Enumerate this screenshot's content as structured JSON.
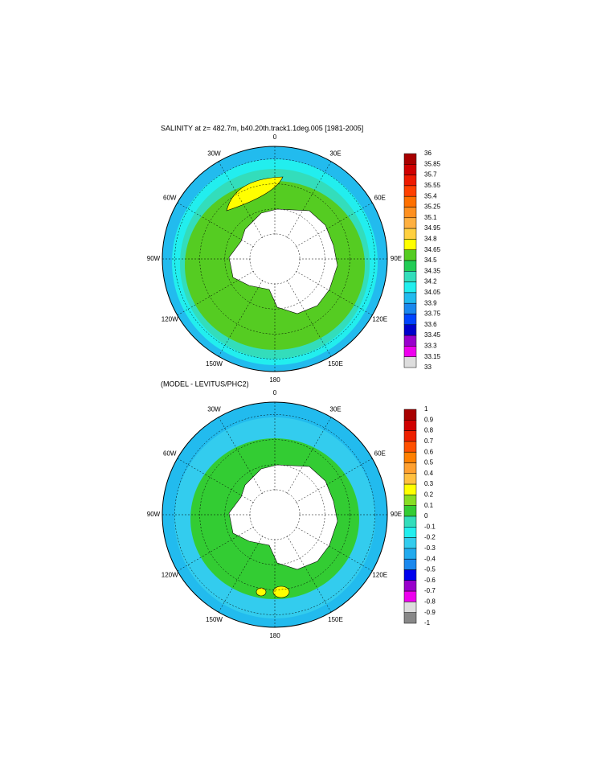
{
  "panels": [
    {
      "title": "SALINITY at z= 482.7m, b40.20th.track1.1deg.005 [1981-2005]",
      "lon_labels": [
        "0",
        "30E",
        "60E",
        "90E",
        "120E",
        "150E",
        "180",
        "150W",
        "120W",
        "90W",
        "60W",
        "30W"
      ],
      "colorbar": {
        "labels": [
          "36",
          "35.85",
          "35.7",
          "35.55",
          "35.4",
          "35.25",
          "35.1",
          "34.95",
          "34.8",
          "34.65",
          "34.5",
          "34.35",
          "34.2",
          "34.05",
          "33.9",
          "33.75",
          "33.6",
          "33.45",
          "33.3",
          "33.15",
          "33"
        ],
        "colors": [
          "#a80000",
          "#d00000",
          "#ee1a00",
          "#ff4000",
          "#ff7000",
          "#ff9020",
          "#ffb040",
          "#ffd040",
          "#ffff00",
          "#55cc22",
          "#22cc55",
          "#33ddbb",
          "#22eeee",
          "#22bbee",
          "#1a88ee",
          "#0044ff",
          "#0000cc",
          "#9900cc",
          "#ee00ee",
          "#dddddd"
        ]
      }
    },
    {
      "title": "(MODEL - LEVITUS/PHC2)",
      "lon_labels": [
        "0",
        "30E",
        "60E",
        "90E",
        "120E",
        "150E",
        "180",
        "150W",
        "120W",
        "90W",
        "60W",
        "30W"
      ],
      "colorbar": {
        "labels": [
          "1",
          "0.9",
          "0.8",
          "0.7",
          "0.6",
          "0.5",
          "0.4",
          "0.3",
          "0.2",
          "0.1",
          "0",
          "-0.1",
          "-0.2",
          "-0.3",
          "-0.4",
          "-0.5",
          "-0.6",
          "-0.7",
          "-0.8",
          "-0.9",
          "-1"
        ],
        "colors": [
          "#a80000",
          "#d00000",
          "#ee2000",
          "#ff5000",
          "#ff8000",
          "#ffa030",
          "#ffc040",
          "#ffff00",
          "#88dd22",
          "#33cc33",
          "#33ddbb",
          "#22eeee",
          "#33ccee",
          "#22aaee",
          "#1a88ee",
          "#0000ee",
          "#9900cc",
          "#ee00ee",
          "#dddddd",
          "#888888"
        ]
      }
    }
  ]
}
